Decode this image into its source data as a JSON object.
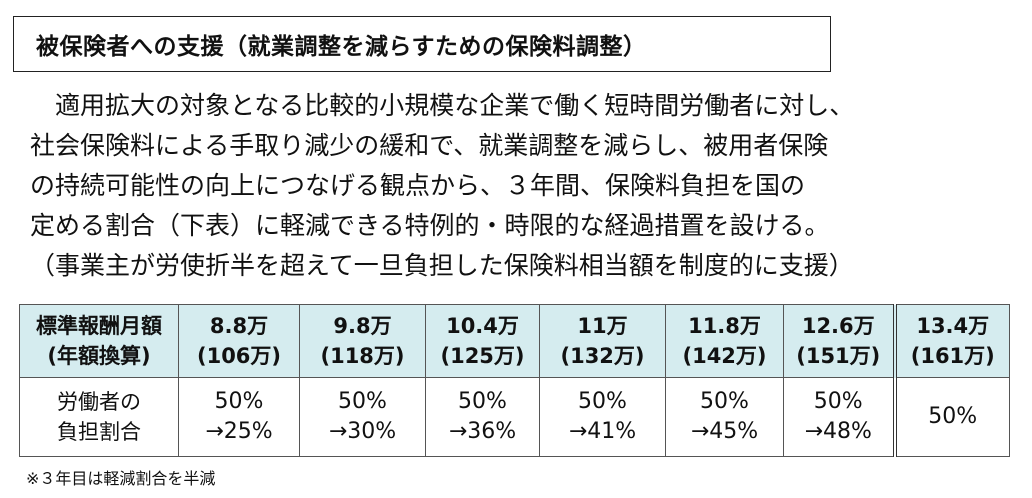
{
  "title": "被保険者への支援（就業調整を減らすための保険料調整）",
  "paragraph": [
    "　適用拡大の対象となる比較的小規模な企業で働く短時間労働者に対し、",
    "社会保険料による手取り減少の緩和で、就業調整を減らし、被用者保険",
    "の持続可能性の向上につなげる観点から、３年間、保険料負担を国の",
    "定める割合（下表）に軽減できる特例的・時限的な経過措置を設ける。",
    "（事業主が労使折半を超えて一旦負担した保険料相当額を制度的に支援）"
  ],
  "table": {
    "header_label": [
      "標準報酬月額",
      "(年額換算)"
    ],
    "columns": [
      {
        "monthly": "8.8万",
        "annual": "(106万)"
      },
      {
        "monthly": "9.8万",
        "annual": "(118万)"
      },
      {
        "monthly": "10.4万",
        "annual": "(125万)"
      },
      {
        "monthly": "11万",
        "annual": "(132万)"
      },
      {
        "monthly": "11.8万",
        "annual": "(142万)"
      },
      {
        "monthly": "12.6万",
        "annual": "(151万)"
      },
      {
        "monthly": "13.4万",
        "annual": "(161万)"
      }
    ],
    "row_label": [
      "労働者の",
      "負担割合"
    ],
    "rates": [
      [
        "50%",
        "→25%"
      ],
      [
        "50%",
        "→30%"
      ],
      [
        "50%",
        "→36%"
      ],
      [
        "50%",
        "→41%"
      ],
      [
        "50%",
        "→45%"
      ],
      [
        "50%",
        "→48%"
      ],
      [
        "50%"
      ]
    ]
  },
  "footnote": "※３年目は軽減割合を半減"
}
